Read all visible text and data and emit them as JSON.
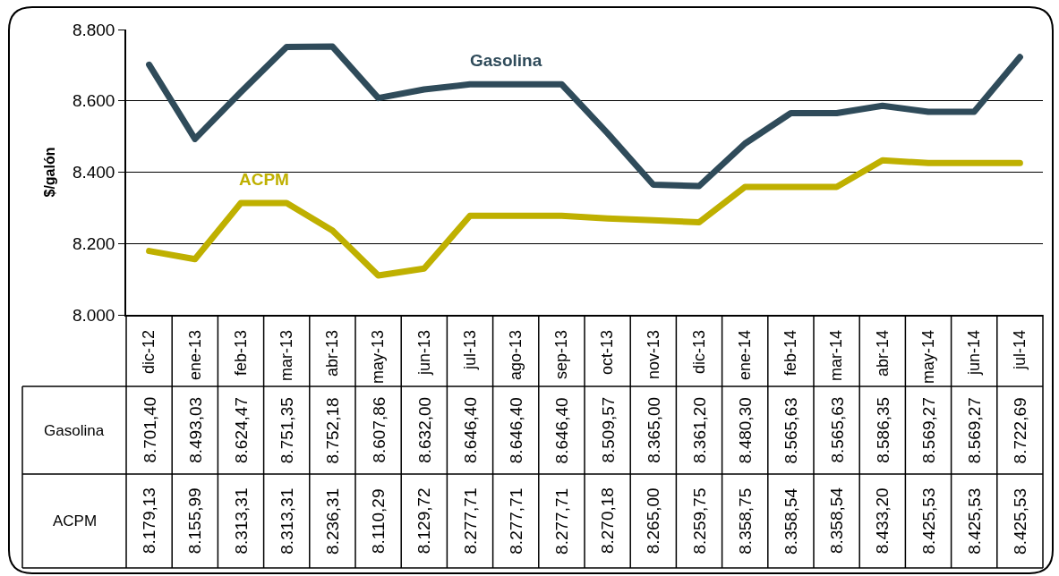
{
  "chart_data": {
    "type": "line",
    "ylabel": "$/galón",
    "categories": [
      "dic-12",
      "ene-13",
      "feb-13",
      "mar-13",
      "abr-13",
      "may-13",
      "jun-13",
      "jul-13",
      "ago-13",
      "sep-13",
      "oct-13",
      "nov-13",
      "dic-13",
      "ene-14",
      "feb-14",
      "mar-14",
      "abr-14",
      "may-14",
      "jun-14",
      "jul-14"
    ],
    "series": [
      {
        "name": "Gasolina",
        "color": "#2f4b5a",
        "values": [
          8701.4,
          8493.03,
          8624.47,
          8751.35,
          8752.18,
          8607.86,
          8632.0,
          8646.4,
          8646.4,
          8646.4,
          8509.57,
          8365.0,
          8361.2,
          8480.3,
          8565.63,
          8565.63,
          8586.35,
          8569.27,
          8569.27,
          8722.69
        ],
        "value_labels": [
          "8.701,40",
          "8.493,03",
          "8.624,47",
          "8.751,35",
          "8.752,18",
          "8.607,86",
          "8.632,00",
          "8.646,40",
          "8.646,40",
          "8.646,40",
          "8.509,57",
          "8.365,00",
          "8.361,20",
          "8.480,30",
          "8.565,63",
          "8.565,63",
          "8.586,35",
          "8.569,27",
          "8.569,27",
          "8.722,69"
        ]
      },
      {
        "name": "ACPM",
        "color": "#bfb000",
        "values": [
          8179.13,
          8155.99,
          8313.31,
          8313.31,
          8236.31,
          8110.29,
          8129.72,
          8277.71,
          8277.71,
          8277.71,
          8270.18,
          8265.0,
          8259.75,
          8358.75,
          8358.54,
          8358.54,
          8433.2,
          8425.53,
          8425.53,
          8425.53
        ],
        "value_labels": [
          "8.179,13",
          "8.155,99",
          "8.313,31",
          "8.313,31",
          "8.236,31",
          "8.110,29",
          "8.129,72",
          "8.277,71",
          "8.277,71",
          "8.277,71",
          "8.270,18",
          "8.265,00",
          "8.259,75",
          "8.358,75",
          "8.358,54",
          "8.358,54",
          "8.433,20",
          "8.425,53",
          "8.425,53",
          "8.425,53"
        ]
      }
    ],
    "ylim": [
      8000,
      8800
    ],
    "yticks": [
      {
        "value": 8000,
        "label": "8.000"
      },
      {
        "value": 8200,
        "label": "8.200"
      },
      {
        "value": 8400,
        "label": "8.400"
      },
      {
        "value": 8600,
        "label": "8.600"
      },
      {
        "value": 8800,
        "label": "8.800"
      }
    ],
    "grid": "y",
    "legend": false,
    "marker": "none",
    "line_style": "solid"
  }
}
